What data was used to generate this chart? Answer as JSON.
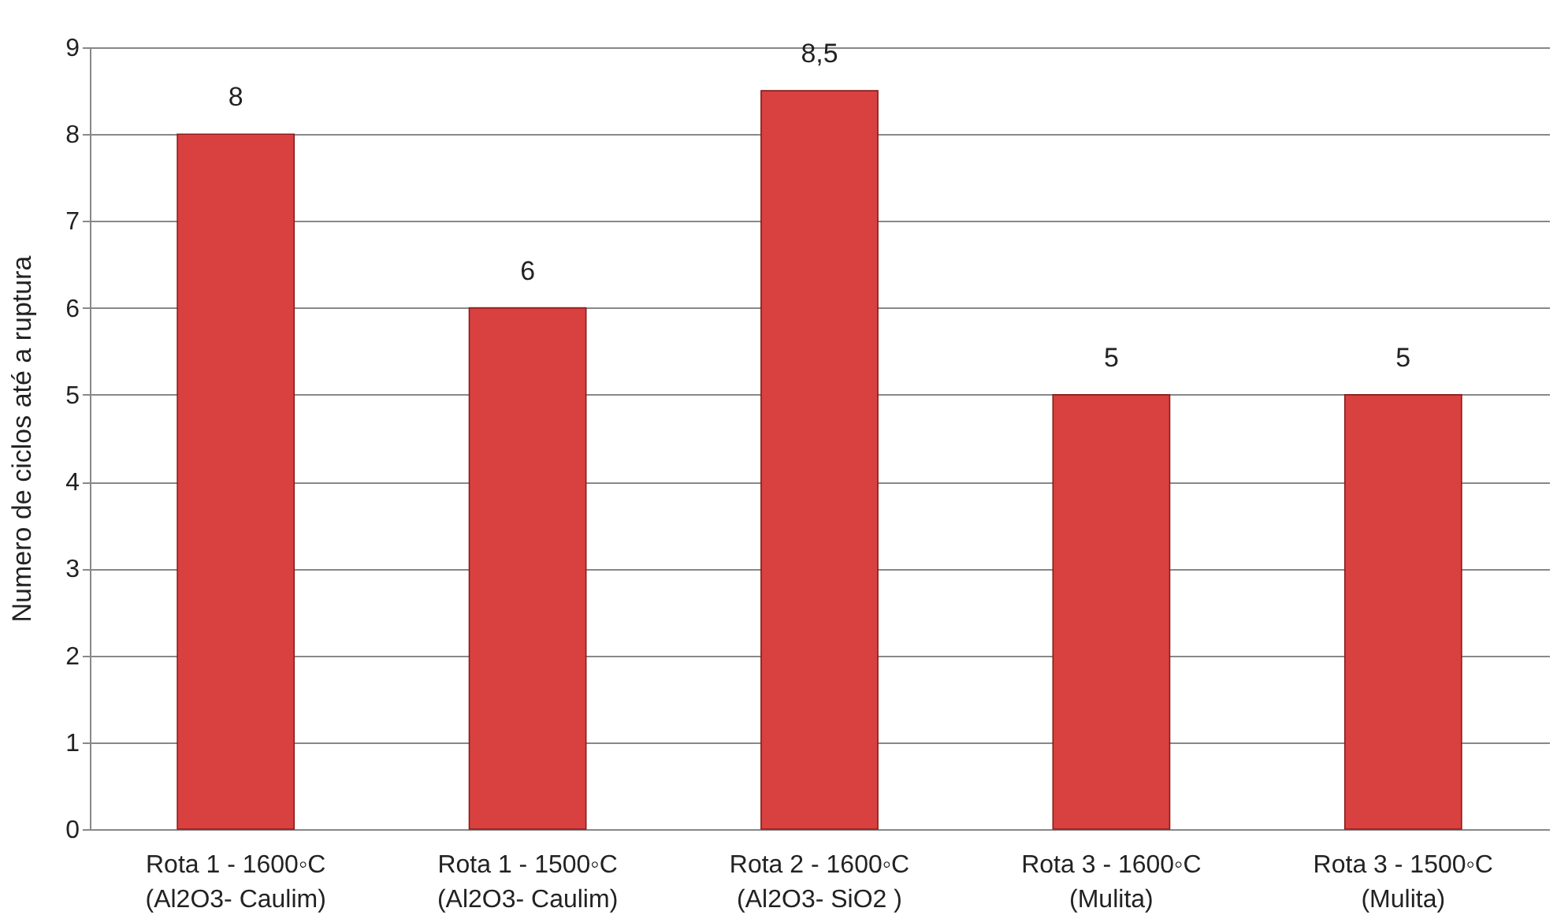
{
  "chart_data": {
    "type": "bar",
    "ylabel": "Numero de ciclos até a ruptura",
    "categories": [
      "Rota 1 - 1600◦C (Al2O3- Caulim)",
      "Rota 1 - 1500◦C (Al2O3- Caulim)",
      "Rota 2 - 1600◦C (Al2O3- SiO2 )",
      "Rota 3 - 1600◦C (Mulita)",
      "Rota 3 - 1500◦C (Mulita)"
    ],
    "values": [
      8,
      6,
      8.5,
      5,
      5
    ],
    "value_labels": [
      "8",
      "6",
      "8,5",
      "5",
      "5"
    ],
    "color": "#d8413f",
    "ylim": [
      0,
      9
    ],
    "yticks": [
      0,
      1,
      2,
      3,
      4,
      5,
      6,
      7,
      8,
      9
    ],
    "grid": "y"
  }
}
